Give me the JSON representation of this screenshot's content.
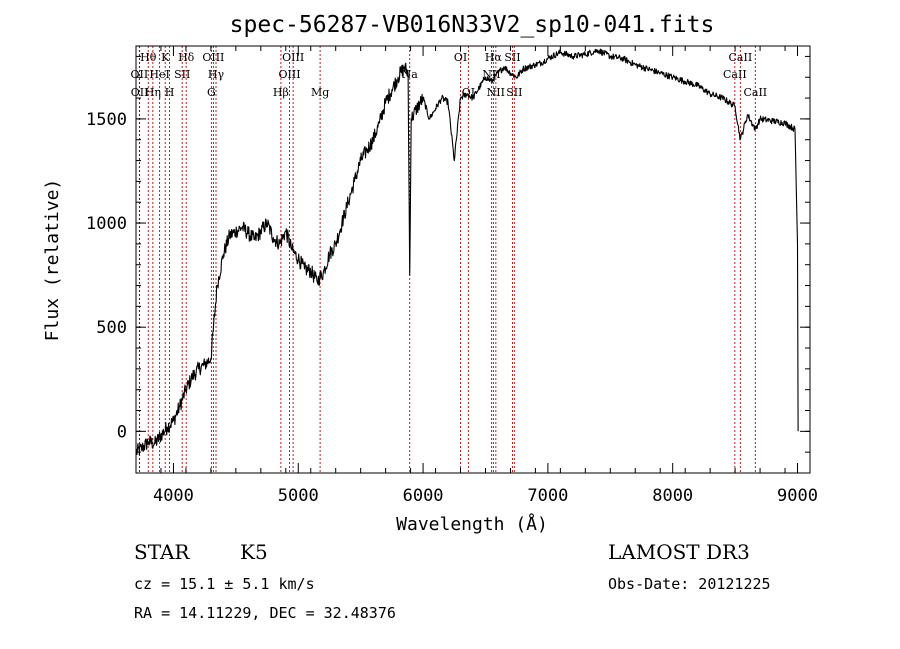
{
  "chart_data": {
    "type": "line",
    "title": "spec-56287-VB016N33V2_sp10-041.fits",
    "xlabel": "Wavelength (Å)",
    "ylabel": "Flux (relative)",
    "xlim": [
      3700,
      9100
    ],
    "ylim": [
      -200,
      1850
    ],
    "xticks": [
      4000,
      5000,
      6000,
      7000,
      8000,
      9000
    ],
    "xtick_labels": [
      "4000",
      "5000",
      "6000",
      "7000",
      "8000",
      "9000"
    ],
    "yticks": [
      0,
      500,
      1000,
      1500
    ],
    "ytick_labels": [
      "0",
      "500",
      "1000",
      "1500"
    ],
    "grid": false,
    "series": [
      {
        "name": "flux",
        "x": [
          3700,
          3750,
          3800,
          3850,
          3900,
          3950,
          4000,
          4050,
          4100,
          4150,
          4200,
          4250,
          4300,
          4350,
          4400,
          4450,
          4500,
          4550,
          4600,
          4650,
          4700,
          4750,
          4800,
          4850,
          4900,
          4950,
          5000,
          5050,
          5100,
          5150,
          5200,
          5250,
          5300,
          5350,
          5400,
          5450,
          5500,
          5550,
          5600,
          5650,
          5700,
          5750,
          5800,
          5850,
          5880,
          5893,
          5905,
          5950,
          6000,
          6050,
          6100,
          6150,
          6200,
          6250,
          6300,
          6350,
          6400,
          6450,
          6500,
          6550,
          6600,
          6650,
          6700,
          6750,
          6800,
          6850,
          6900,
          6950,
          7000,
          7100,
          7200,
          7300,
          7400,
          7500,
          7600,
          7700,
          7800,
          7900,
          8000,
          8100,
          8200,
          8300,
          8400,
          8500,
          8542,
          8600,
          8662,
          8700,
          8800,
          8900,
          8980,
          9000,
          9005
        ],
        "y": [
          -100,
          -80,
          -50,
          -60,
          -20,
          20,
          50,
          120,
          200,
          260,
          300,
          320,
          350,
          700,
          850,
          940,
          960,
          980,
          950,
          920,
          960,
          1000,
          930,
          900,
          960,
          870,
          830,
          780,
          770,
          720,
          760,
          850,
          900,
          1000,
          1100,
          1200,
          1300,
          1350,
          1400,
          1480,
          1580,
          1640,
          1700,
          1750,
          1720,
          750,
          1500,
          1550,
          1600,
          1500,
          1550,
          1600,
          1580,
          1300,
          1600,
          1620,
          1600,
          1650,
          1700,
          1680,
          1720,
          1750,
          1720,
          1700,
          1740,
          1750,
          1760,
          1770,
          1790,
          1820,
          1800,
          1810,
          1830,
          1800,
          1790,
          1760,
          1740,
          1720,
          1700,
          1680,
          1660,
          1620,
          1600,
          1560,
          1400,
          1520,
          1450,
          1500,
          1490,
          1480,
          1450,
          900,
          0
        ]
      }
    ],
    "line_markers": [
      {
        "label": "Hθ",
        "wavelength": 3798,
        "row": 1
      },
      {
        "label": "OII",
        "wavelength": 3727,
        "row": 2
      },
      {
        "label": "OII",
        "wavelength": 3729,
        "row": 3
      },
      {
        "label": "HeI",
        "wavelength": 3889,
        "row": 2
      },
      {
        "label": "Hη",
        "wavelength": 3835,
        "row": 3
      },
      {
        "label": "K",
        "wavelength": 3934,
        "row": 1
      },
      {
        "label": "H",
        "wavelength": 3969,
        "row": 3
      },
      {
        "label": "SII",
        "wavelength": 4070,
        "row": 2
      },
      {
        "label": "Hδ",
        "wavelength": 4102,
        "row": 1
      },
      {
        "label": "OIII",
        "wavelength": 4320,
        "row": 1
      },
      {
        "label": "Hγ",
        "wavelength": 4341,
        "row": 2
      },
      {
        "label": "G",
        "wavelength": 4304,
        "row": 3
      },
      {
        "label": "OIII",
        "wavelength": 4959,
        "row": 1
      },
      {
        "label": "OIII",
        "wavelength": 4930,
        "row": 2
      },
      {
        "label": "Hβ",
        "wavelength": 4861,
        "row": 3
      },
      {
        "label": "Mg",
        "wavelength": 5175,
        "row": 3
      },
      {
        "label": "Na",
        "wavelength": 5893,
        "row": 2
      },
      {
        "label": "OI",
        "wavelength": 6300,
        "row": 1
      },
      {
        "label": "OI",
        "wavelength": 6363,
        "row": 3
      },
      {
        "label": "Hα",
        "wavelength": 6563,
        "row": 1
      },
      {
        "label": "NII",
        "wavelength": 6548,
        "row": 2
      },
      {
        "label": "NII",
        "wavelength": 6583,
        "row": 3
      },
      {
        "label": "SII",
        "wavelength": 6716,
        "row": 1
      },
      {
        "label": "SII",
        "wavelength": 6731,
        "row": 3
      },
      {
        "label": "CaII",
        "wavelength": 8542,
        "row": 1
      },
      {
        "label": "CaII",
        "wavelength": 8498,
        "row": 2
      },
      {
        "label": "CaII",
        "wavelength": 8662,
        "row": 3
      }
    ],
    "line_marker_color": "#c00000"
  },
  "info": {
    "object_class": "STAR",
    "subclass": "K5",
    "survey": "LAMOST DR3",
    "redshift": "cz = 15.1 ± 5.1 km/s",
    "obs_date": "Obs-Date: 20121225",
    "coordinates": "RA =  14.11229, DEC =  32.48376"
  }
}
